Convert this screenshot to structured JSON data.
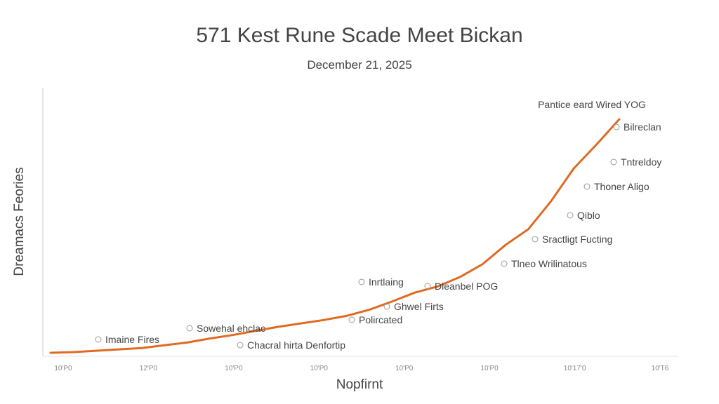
{
  "chart_data": {
    "type": "line",
    "title": "571 Kest Rune Scade Meet Bickan",
    "subtitle": "December 21, 2025",
    "xlabel": "Nopfirnt",
    "ylabel": "Dreamacs Feories",
    "x_ticks": [
      "10'P0",
      "12'P0",
      "10'P0",
      "10'P0",
      "10'P0",
      "10'P0",
      "10'17'0",
      "10'T6"
    ],
    "grid": false,
    "series": [
      {
        "color": "#e06a22",
        "points": [
          [
            0,
            0
          ],
          [
            1,
            1
          ],
          [
            2,
            3
          ],
          [
            3,
            5
          ],
          [
            4,
            7
          ],
          [
            5,
            11
          ],
          [
            6,
            15
          ],
          [
            7,
            21
          ],
          [
            8,
            26
          ],
          [
            9,
            32
          ],
          [
            10,
            38
          ],
          [
            11,
            43
          ],
          [
            12,
            48
          ],
          [
            13,
            54
          ],
          [
            14,
            63
          ],
          [
            15,
            75
          ],
          [
            16,
            88
          ],
          [
            17,
            97
          ],
          [
            18,
            111
          ],
          [
            19,
            130
          ],
          [
            20,
            158
          ],
          [
            21,
            181
          ],
          [
            22,
            222
          ],
          [
            23,
            270
          ],
          [
            24,
            305
          ],
          [
            25,
            342
          ]
        ]
      }
    ],
    "annotations": [
      {
        "text": "Imaine Fires",
        "x": 5,
        "y": 11
      },
      {
        "text": "Sowehal ehclac",
        "x": 10,
        "y": 38
      },
      {
        "text": "Chacral hirta Denfortip",
        "x": 11,
        "y": 43
      },
      {
        "text": "Polircated",
        "x": 13,
        "y": 54
      },
      {
        "text": "Ghwel Firts",
        "x": 15,
        "y": 75
      },
      {
        "text": "Inrtlaing",
        "x": 14,
        "y": 63
      },
      {
        "text": "Dleanbel POG",
        "x": 17,
        "y": 97
      },
      {
        "text": "Tlneo Wrilinatous",
        "x": 19,
        "y": 130
      },
      {
        "text": "Sractligt Fucting",
        "x": 21,
        "y": 181
      },
      {
        "text": "Qiblo",
        "x": 22,
        "y": 222
      },
      {
        "text": "Thoner Aligo",
        "x": 23,
        "y": 270
      },
      {
        "text": "Tntreldoy",
        "x": 24,
        "y": 305
      },
      {
        "text": "Bilreclan",
        "x": 25,
        "y": 342
      },
      {
        "text": "Pantice eard Wired YOG",
        "x": 25,
        "y": 342
      }
    ],
    "xlim": [
      0,
      25
    ],
    "ylim": [
      0,
      342
    ]
  }
}
